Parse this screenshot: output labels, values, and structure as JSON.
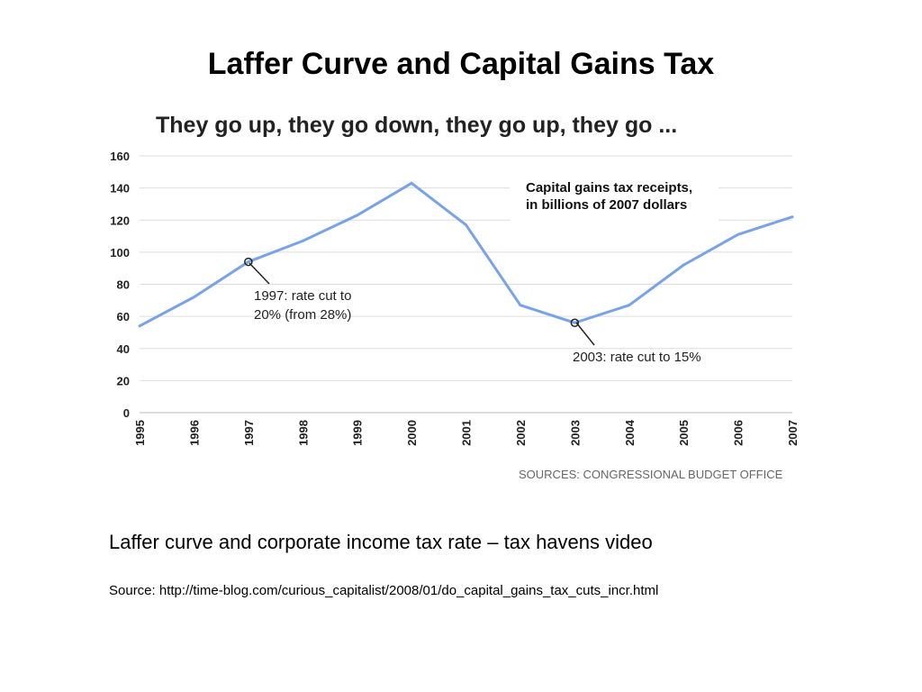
{
  "slide": {
    "title": "Laffer Curve and Capital Gains Tax",
    "caption": "Laffer curve and corporate income tax rate – tax havens video",
    "source": "Source: http://time-blog.com/curious_capitalist/2008/01/do_capital_gains_tax_cuts_incr.html"
  },
  "chart_data": {
    "type": "line",
    "title": "They go up, they go down, they go up, they go ...",
    "xlabel": "",
    "ylabel": "",
    "categories": [
      "1995",
      "1996",
      "1997",
      "1998",
      "1999",
      "2000",
      "2001",
      "2002",
      "2003",
      "2004",
      "2005",
      "2006",
      "2007"
    ],
    "series": [
      {
        "name": "Capital gains tax receipts, in billions of 2007 dollars",
        "values": [
          54,
          72,
          94,
          107,
          123,
          143,
          117,
          67,
          56,
          67,
          92,
          111,
          122
        ],
        "color": "#78a3e6"
      }
    ],
    "ylim": [
      0,
      160
    ],
    "yticks": [
      0,
      20,
      40,
      60,
      80,
      100,
      120,
      140,
      160
    ],
    "grid": true,
    "legend": {
      "lines": [
        "Capital gains tax receipts,",
        "in billions of 2007 dollars"
      ],
      "placement": "top-right"
    },
    "annotations": [
      {
        "x": "1997",
        "lines": [
          "1997: rate cut to",
          "20% (from 28%)"
        ]
      },
      {
        "x": "2003",
        "lines": [
          "2003: rate cut to 15%"
        ]
      }
    ],
    "source_note": "SOURCES: CONGRESSIONAL BUDGET OFFICE"
  }
}
